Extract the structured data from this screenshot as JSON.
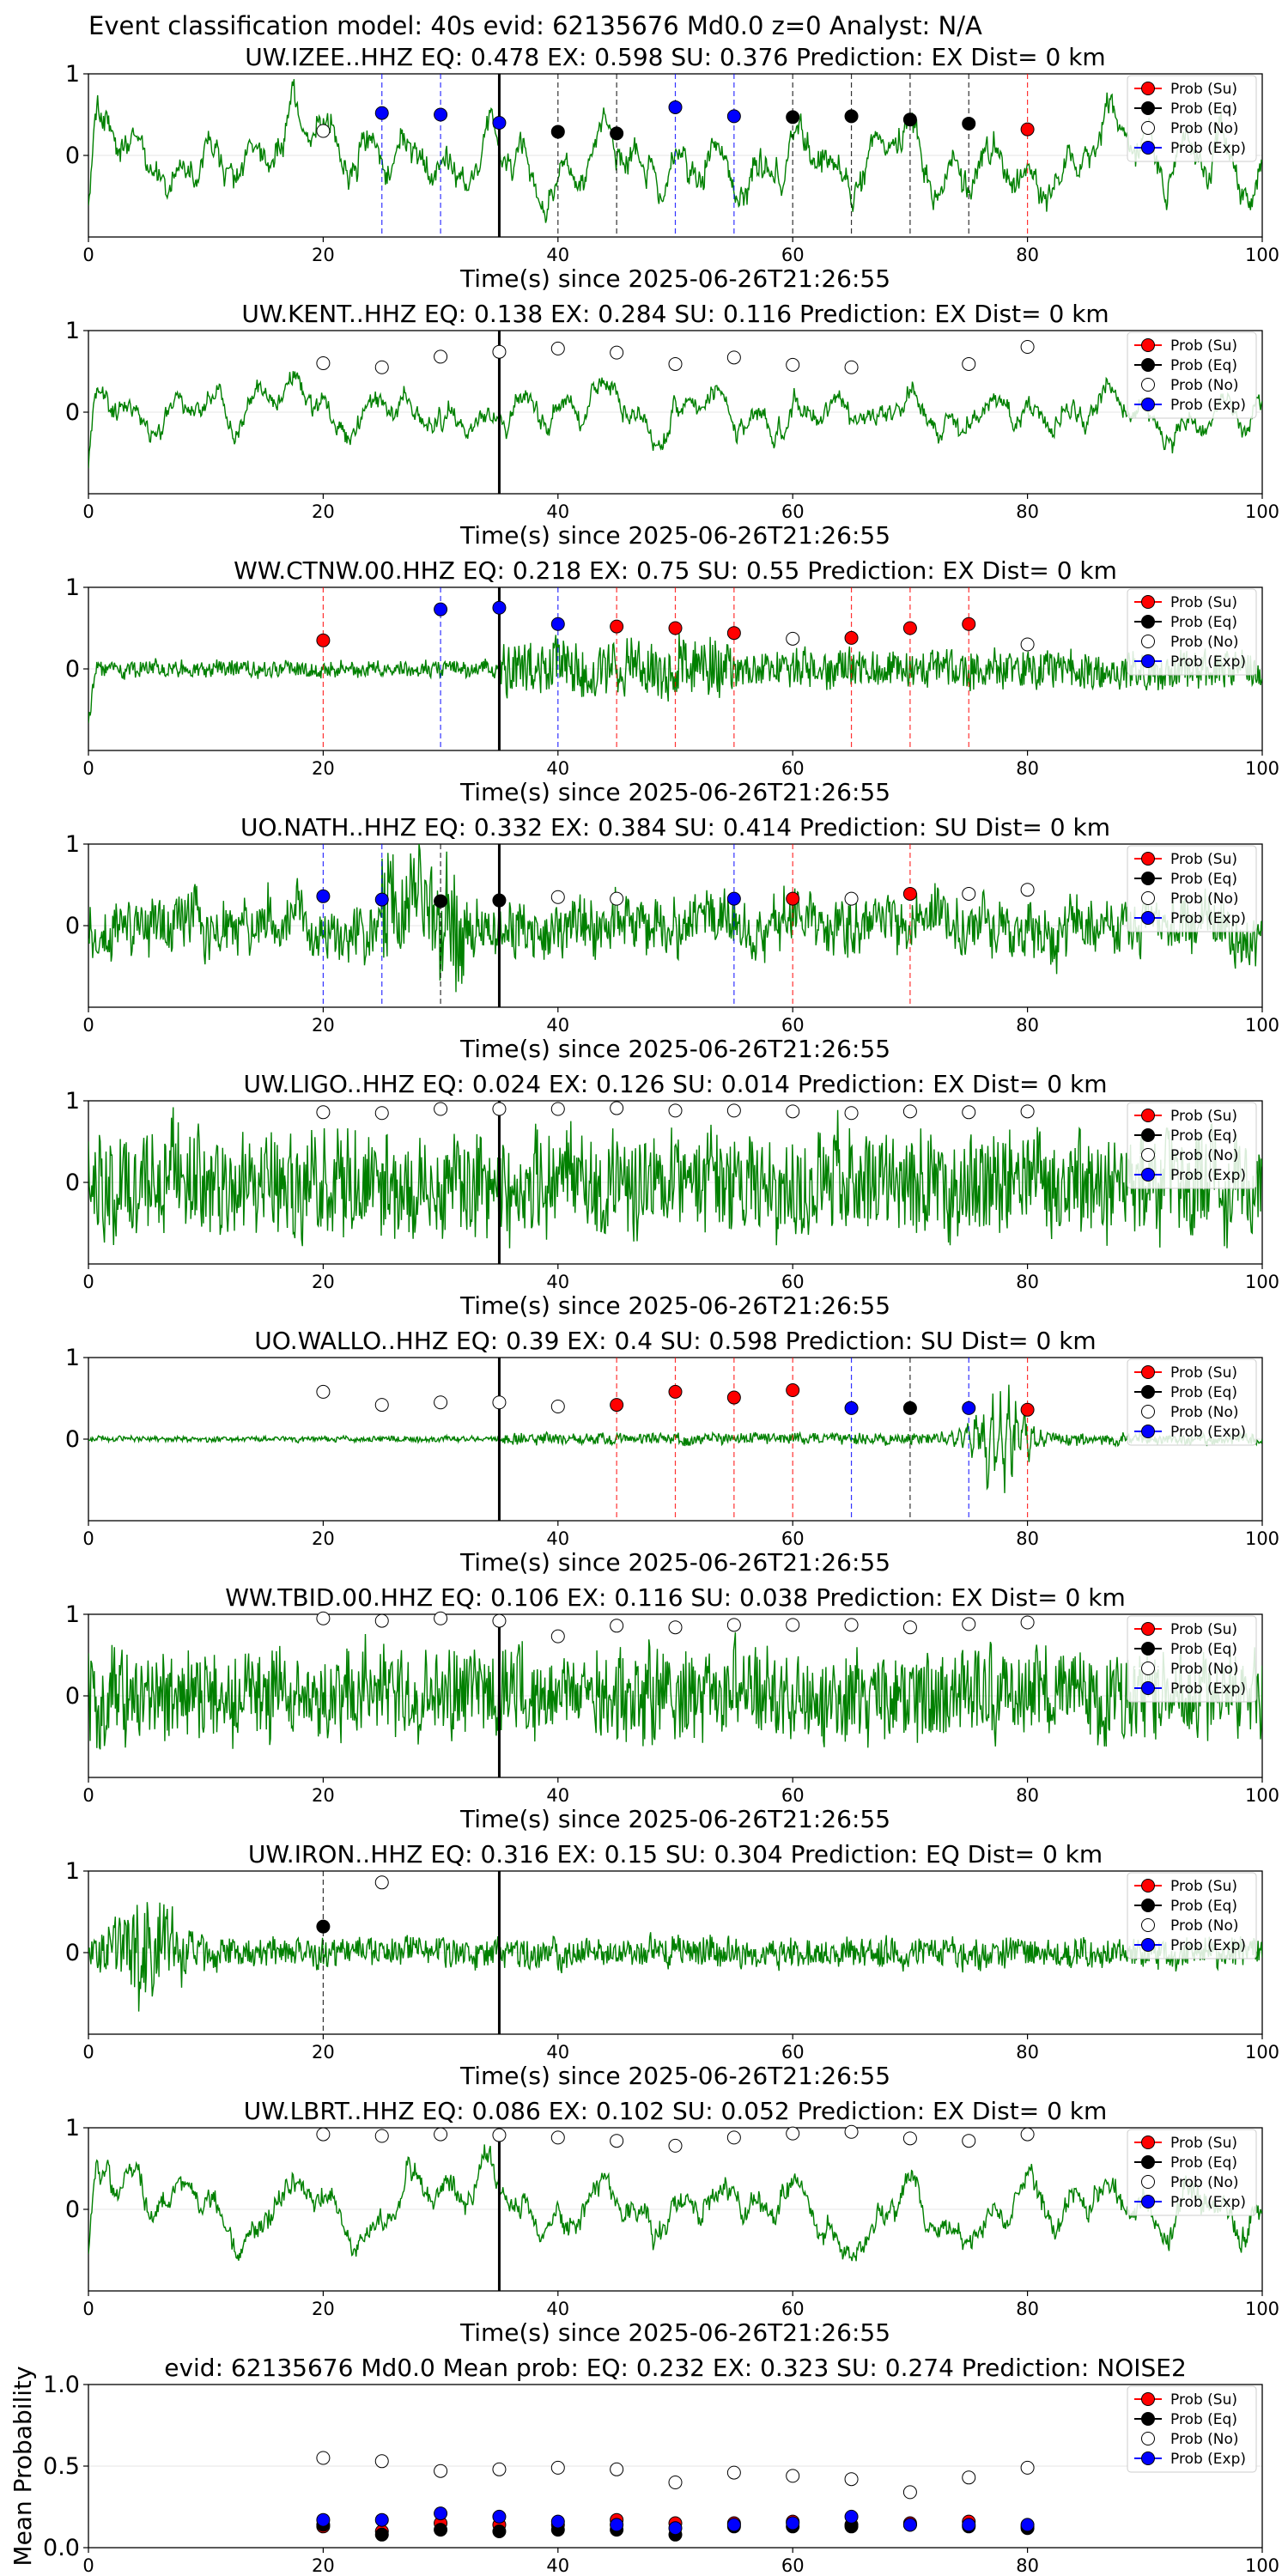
{
  "figure_title": "Event classification model: 40s evid: 62135676 Md0.0 z=0 Analyst: N/A",
  "colors": {
    "waveform": "#008000",
    "su": "#ff0000",
    "eq": "#000000",
    "no": "#ffffff",
    "exp": "#0000ff"
  },
  "legend": [
    "Prob (Su)",
    "Prob (Eq)",
    "Prob (No)",
    "Prob (Exp)"
  ],
  "chart_data": [
    {
      "type": "line+scatter",
      "title": "UW.IZEE..HHZ   EQ: 0.478  EX: 0.598  SU: 0.376   Prediction: EX    Dist= 0 km",
      "xlabel": "Time(s) since 2025-06-26T21:26:55",
      "xlim": [
        0,
        100
      ],
      "xticks": [
        "0",
        "20",
        "40",
        "60",
        "80",
        "100"
      ],
      "yticks": [
        "1",
        "0"
      ],
      "ylim": [
        -1,
        1
      ],
      "vline": 35,
      "waveform": {
        "amplitude": 0.65,
        "character": "low-frequency",
        "seed": 11
      },
      "windows": [
        20,
        25,
        30,
        35,
        40,
        45,
        50,
        55,
        60,
        65,
        70,
        75,
        80
      ],
      "win_classes": [
        "No",
        "Exp",
        "Exp",
        "Exp",
        "Eq",
        "Eq",
        "Exp",
        "Exp",
        "Eq",
        "Eq",
        "Eq",
        "Eq",
        "Su"
      ],
      "win_probs": [
        0.3,
        0.52,
        0.5,
        0.4,
        0.29,
        0.27,
        0.59,
        0.48,
        0.47,
        0.48,
        0.44,
        0.39,
        0.32
      ]
    },
    {
      "type": "line+scatter",
      "title": "UW.KENT..HHZ   EQ: 0.138  EX: 0.284  SU: 0.116   Prediction: EX    Dist= 0 km",
      "xlabel": "Time(s) since 2025-06-26T21:26:55",
      "xlim": [
        0,
        100
      ],
      "xticks": [
        "0",
        "20",
        "40",
        "60",
        "80",
        "100"
      ],
      "yticks": [
        "1",
        "0"
      ],
      "ylim": [
        -1,
        1
      ],
      "vline": 35,
      "waveform": {
        "amplitude": 0.45,
        "character": "low-frequency",
        "seed": 23
      },
      "windows": [
        20,
        25,
        30,
        35,
        40,
        45,
        50,
        55,
        60,
        65,
        75,
        80
      ],
      "win_classes": [
        "No",
        "No",
        "No",
        "No",
        "No",
        "No",
        "No",
        "No",
        "No",
        "No",
        "No",
        "No"
      ],
      "win_probs": [
        0.6,
        0.55,
        0.68,
        0.74,
        0.78,
        0.73,
        0.59,
        0.67,
        0.58,
        0.55,
        0.59,
        0.8
      ]
    },
    {
      "type": "line+scatter",
      "title": "WW.CTNW.00.HHZ   EQ: 0.218  EX: 0.75  SU: 0.55   Prediction: EX    Dist= 0 km",
      "xlabel": "Time(s) since 2025-06-26T21:26:55",
      "xlim": [
        0,
        100
      ],
      "xticks": [
        "0",
        "20",
        "40",
        "60",
        "80",
        "100"
      ],
      "yticks": [
        "1",
        "0"
      ],
      "ylim": [
        -1,
        1
      ],
      "vline": 35,
      "waveform": {
        "amplitude": 0.45,
        "character": "high-frequency-onset",
        "seed": 37
      },
      "windows": [
        20,
        30,
        35,
        40,
        45,
        50,
        55,
        60,
        65,
        70,
        75,
        80
      ],
      "win_classes": [
        "Su",
        "Exp",
        "Exp",
        "Exp",
        "Su",
        "Su",
        "Su",
        "No",
        "Su",
        "Su",
        "Su",
        "No"
      ],
      "win_probs": [
        0.35,
        0.73,
        0.75,
        0.55,
        0.52,
        0.5,
        0.44,
        0.37,
        0.38,
        0.5,
        0.55,
        0.3
      ]
    },
    {
      "type": "line+scatter",
      "title": "UO.NATH..HHZ   EQ: 0.332  EX: 0.384  SU: 0.414   Prediction: SU    Dist= 0 km",
      "xlabel": "Time(s) since 2025-06-26T21:26:55",
      "xlim": [
        0,
        100
      ],
      "xticks": [
        "0",
        "20",
        "40",
        "60",
        "80",
        "100"
      ],
      "yticks": [
        "1",
        "0"
      ],
      "ylim": [
        -1,
        1
      ],
      "vline": 35,
      "waveform": {
        "amplitude": 0.55,
        "character": "mixed-burst",
        "seed": 41
      },
      "windows": [
        20,
        25,
        30,
        35,
        40,
        45,
        55,
        60,
        65,
        70,
        75,
        80
      ],
      "win_classes": [
        "Exp",
        "Exp",
        "Eq",
        "Eq",
        "No",
        "No",
        "Exp",
        "Su",
        "No",
        "Su",
        "No",
        "No"
      ],
      "win_probs": [
        0.36,
        0.32,
        0.3,
        0.31,
        0.35,
        0.33,
        0.33,
        0.33,
        0.33,
        0.39,
        0.39,
        0.44
      ]
    },
    {
      "type": "line+scatter",
      "title": "UW.LIGO..HHZ   EQ: 0.024  EX: 0.126  SU: 0.014   Prediction: EX    Dist= 0 km",
      "xlabel": "Time(s) since 2025-06-26T21:26:55",
      "xlim": [
        0,
        100
      ],
      "xticks": [
        "0",
        "20",
        "40",
        "60",
        "80",
        "100"
      ],
      "yticks": [
        "1",
        "0"
      ],
      "ylim": [
        -1,
        1
      ],
      "vline": 35,
      "waveform": {
        "amplitude": 0.8,
        "character": "dense-noise",
        "seed": 53
      },
      "windows": [
        20,
        25,
        30,
        35,
        40,
        45,
        50,
        55,
        60,
        65,
        70,
        75,
        80
      ],
      "win_classes": [
        "No",
        "No",
        "No",
        "No",
        "No",
        "No",
        "No",
        "No",
        "No",
        "No",
        "No",
        "No",
        "No"
      ],
      "win_probs": [
        0.86,
        0.85,
        0.9,
        0.9,
        0.9,
        0.91,
        0.88,
        0.88,
        0.87,
        0.85,
        0.87,
        0.86,
        0.87
      ]
    },
    {
      "type": "line+scatter",
      "title": "UO.WALLO..HHZ   EQ: 0.39  EX: 0.4  SU: 0.598   Prediction: SU    Dist= 0 km",
      "xlabel": "Time(s) since 2025-06-26T21:26:55",
      "xlim": [
        0,
        100
      ],
      "xticks": [
        "0",
        "20",
        "40",
        "60",
        "80",
        "100"
      ],
      "yticks": [
        "1",
        "0"
      ],
      "ylim": [
        -1,
        1
      ],
      "vline": 35,
      "waveform": {
        "amplitude": 0.15,
        "character": "quiet-with-burst-at-78",
        "seed": 67
      },
      "windows": [
        20,
        25,
        30,
        35,
        40,
        45,
        50,
        55,
        60,
        65,
        70,
        75,
        80
      ],
      "win_classes": [
        "No",
        "No",
        "No",
        "No",
        "No",
        "Su",
        "Su",
        "Su",
        "Su",
        "Exp",
        "Eq",
        "Exp",
        "Su"
      ],
      "win_probs": [
        0.58,
        0.42,
        0.45,
        0.45,
        0.4,
        0.42,
        0.58,
        0.51,
        0.6,
        0.38,
        0.38,
        0.38,
        0.36
      ]
    },
    {
      "type": "line+scatter",
      "title": "WW.TBID.00.HHZ   EQ: 0.106  EX: 0.116  SU: 0.038   Prediction: EX    Dist= 0 km",
      "xlabel": "Time(s) since 2025-06-26T21:26:55",
      "xlim": [
        0,
        100
      ],
      "xticks": [
        "0",
        "20",
        "40",
        "60",
        "80",
        "100"
      ],
      "yticks": [
        "1",
        "0"
      ],
      "ylim": [
        -1,
        1
      ],
      "vline": 35,
      "waveform": {
        "amplitude": 0.7,
        "character": "dense-noise",
        "seed": 79
      },
      "windows": [
        20,
        25,
        30,
        35,
        40,
        45,
        50,
        55,
        60,
        65,
        70,
        75,
        80
      ],
      "win_classes": [
        "No",
        "No",
        "No",
        "No",
        "No",
        "No",
        "No",
        "No",
        "No",
        "No",
        "No",
        "No",
        "No"
      ],
      "win_probs": [
        0.95,
        0.92,
        0.95,
        0.92,
        0.73,
        0.86,
        0.84,
        0.87,
        0.87,
        0.87,
        0.84,
        0.88,
        0.9
      ]
    },
    {
      "type": "line+scatter",
      "title": "UW.IRON..HHZ   EQ: 0.316  EX: 0.15  SU: 0.304   Prediction: EQ    Dist= 0 km",
      "xlabel": "Time(s) since 2025-06-26T21:26:55",
      "xlim": [
        0,
        100
      ],
      "xticks": [
        "0",
        "20",
        "40",
        "60",
        "80",
        "100"
      ],
      "yticks": [
        "1",
        "0"
      ],
      "ylim": [
        -1,
        1
      ],
      "vline": 35,
      "waveform": {
        "amplitude": 0.3,
        "character": "early-burst",
        "seed": 83
      },
      "windows": [
        20,
        25
      ],
      "win_classes": [
        "Eq",
        "No"
      ],
      "win_probs": [
        0.32,
        0.86
      ]
    },
    {
      "type": "line+scatter",
      "title": "UW.LBRT..HHZ   EQ: 0.086  EX: 0.102  SU: 0.052   Prediction: EX    Dist= 0 km",
      "xlabel": "Time(s) since 2025-06-26T21:26:55",
      "xlim": [
        0,
        100
      ],
      "xticks": [
        "0",
        "20",
        "40",
        "60",
        "80",
        "100"
      ],
      "yticks": [
        "1",
        "0"
      ],
      "ylim": [
        -1,
        1
      ],
      "vline": 35,
      "waveform": {
        "amplitude": 0.55,
        "character": "low-frequency",
        "seed": 97
      },
      "windows": [
        20,
        25,
        30,
        35,
        40,
        45,
        50,
        55,
        60,
        65,
        70,
        75,
        80
      ],
      "win_classes": [
        "No",
        "No",
        "No",
        "No",
        "No",
        "No",
        "No",
        "No",
        "No",
        "No",
        "No",
        "No",
        "No"
      ],
      "win_probs": [
        0.92,
        0.9,
        0.92,
        0.91,
        0.88,
        0.84,
        0.78,
        0.88,
        0.93,
        0.95,
        0.87,
        0.84,
        0.92
      ]
    },
    {
      "type": "scatter",
      "title": "evid: 62135676  Md0.0   Mean prob:    EQ: 0.232  EX: 0.323  SU: 0.274   Prediction: NOISE2",
      "ylabel": "Mean Probability",
      "xlim": [
        0,
        100
      ],
      "ylim": [
        0,
        1
      ],
      "xticks": [
        "0",
        "20",
        "40",
        "60",
        "80",
        "100"
      ],
      "yticks": [
        "1.0",
        "0.5",
        "0.0"
      ],
      "x": [
        20,
        25,
        30,
        35,
        40,
        45,
        50,
        55,
        60,
        65,
        70,
        75,
        80
      ],
      "series": [
        {
          "name": "Prob (Su)",
          "values": [
            0.13,
            0.1,
            0.15,
            0.14,
            0.14,
            0.17,
            0.15,
            0.15,
            0.16,
            0.14,
            0.15,
            0.16,
            0.13
          ]
        },
        {
          "name": "Prob (Eq)",
          "values": [
            0.14,
            0.08,
            0.11,
            0.1,
            0.11,
            0.11,
            0.08,
            0.13,
            0.13,
            0.13,
            0.14,
            0.13,
            0.12
          ]
        },
        {
          "name": "Prob (No)",
          "values": [
            0.55,
            0.53,
            0.47,
            0.48,
            0.49,
            0.48,
            0.4,
            0.46,
            0.44,
            0.42,
            0.34,
            0.43,
            0.49
          ]
        },
        {
          "name": "Prob (Exp)",
          "values": [
            0.17,
            0.17,
            0.21,
            0.19,
            0.16,
            0.14,
            0.12,
            0.14,
            0.15,
            0.19,
            0.14,
            0.14,
            0.14
          ]
        }
      ]
    }
  ]
}
